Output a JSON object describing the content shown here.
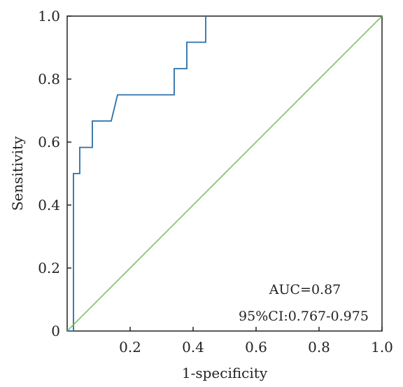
{
  "chart_data": {
    "type": "line",
    "title": "",
    "xlabel": "1-specificity",
    "ylabel": "Sensitivity",
    "xlim": [
      0,
      1
    ],
    "ylim": [
      0,
      1
    ],
    "x_ticks": [
      "0.2",
      "0.4",
      "0.6",
      "0.8",
      "1.0"
    ],
    "y_ticks": [
      "0",
      "0.2",
      "0.4",
      "0.6",
      "0.8",
      "1.0"
    ],
    "grid": false,
    "legend": "none",
    "series": [
      {
        "color": "#2a6fa8",
        "x": [
          0.0,
          0.02,
          0.02,
          0.04,
          0.04,
          0.08,
          0.08,
          0.14,
          0.16,
          0.34,
          0.34,
          0.38,
          0.38,
          0.44,
          0.44
        ],
        "y": [
          0.0,
          0.0,
          0.5,
          0.5,
          0.583,
          0.583,
          0.667,
          0.667,
          0.75,
          0.75,
          0.833,
          0.833,
          0.917,
          0.917,
          1.0
        ]
      },
      {
        "color": "#6abf4b",
        "x": [
          0.0,
          1.0
        ],
        "y": [
          0.0,
          1.0
        ]
      }
    ],
    "annotations": [
      "AUC=0.87",
      "95%CI:0.767-0.975"
    ]
  }
}
